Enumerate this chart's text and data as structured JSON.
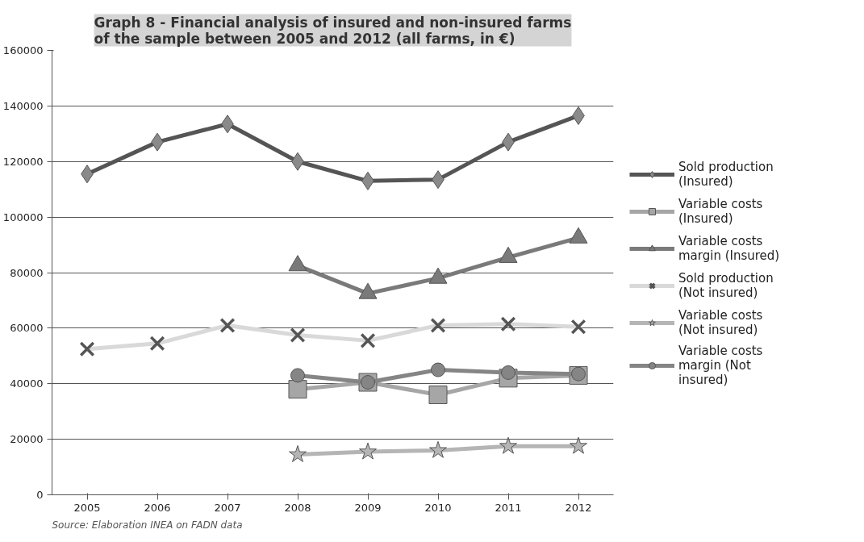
{
  "chart_data": {
    "type": "line",
    "title": "Graph 8 - Financial analysis of insured and non-insured farms\nof the sample between 2005 and 2012 (all farms, in €)",
    "categories": [
      "2005",
      "2006",
      "2007",
      "2008",
      "2009",
      "2010",
      "2011",
      "2012"
    ],
    "series": [
      {
        "name": "Sold production (Insured)",
        "color": "#555555",
        "marker": "diamond",
        "values": [
          115500,
          127000,
          133500,
          120000,
          113000,
          113500,
          127000,
          136500
        ]
      },
      {
        "name": "Variable costs (Insured)",
        "color": "#a6a6a6",
        "marker": "square",
        "values": [
          null,
          null,
          null,
          38000,
          40500,
          36000,
          42000,
          43000
        ]
      },
      {
        "name": "Variable costs margin (Insured)",
        "color": "#7a7a7a",
        "marker": "triangle",
        "values": [
          null,
          null,
          null,
          82500,
          72500,
          78000,
          85500,
          92500
        ]
      },
      {
        "name": "Sold production (Not insured)",
        "color": "#d9d9d9",
        "marker": "cross",
        "values": [
          52500,
          54500,
          61000,
          57500,
          55500,
          61000,
          61500,
          60500
        ]
      },
      {
        "name": "Variable costs (Not insured)",
        "color": "#b5b5b5",
        "marker": "star",
        "values": [
          null,
          null,
          null,
          14500,
          15500,
          16000,
          17500,
          17500
        ]
      },
      {
        "name": "Variable costs margin (Not insured)",
        "color": "#858585",
        "marker": "circle",
        "values": [
          null,
          null,
          null,
          43000,
          40500,
          45000,
          44000,
          43500
        ]
      }
    ],
    "ylim": [
      0,
      160000
    ],
    "yticks": [
      0,
      20000,
      40000,
      60000,
      80000,
      100000,
      120000,
      140000,
      160000
    ],
    "grid": "y",
    "legend": "right",
    "line_style": "solid",
    "annotations": [
      "Source: Elaboration INEA on FADN data"
    ]
  }
}
